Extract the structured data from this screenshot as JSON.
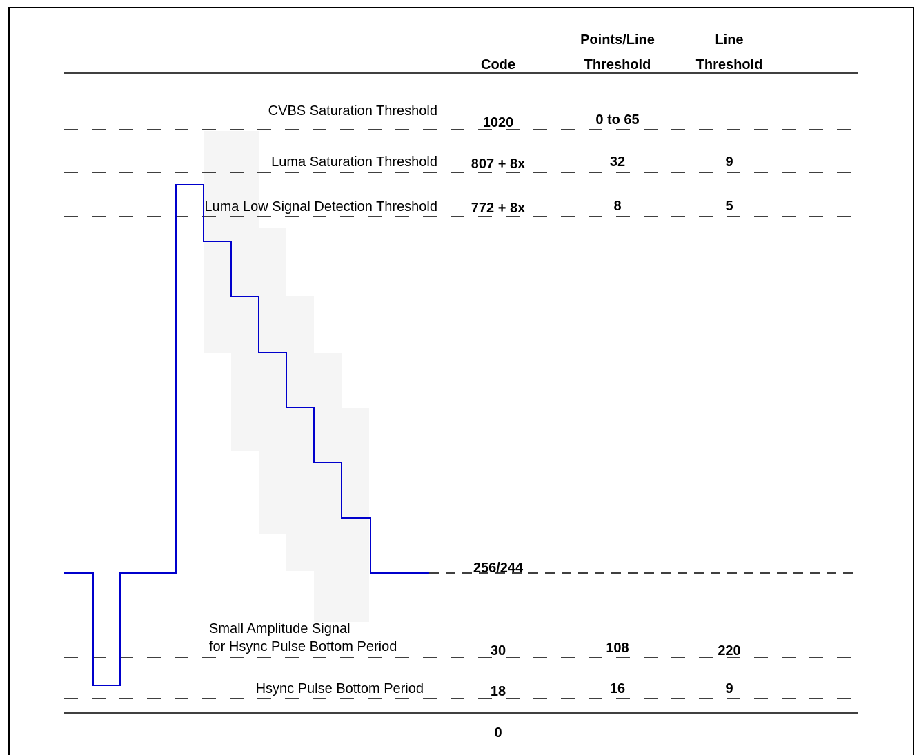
{
  "headers": {
    "code": "Code",
    "points_line_1": "Points/Line",
    "points_line_2": "Threshold",
    "line_1": "Line",
    "line_2": "Threshold"
  },
  "rows": [
    {
      "label": "CVBS Saturation Threshold",
      "code": "1020",
      "points": "0 to 65",
      "line": ""
    },
    {
      "label": "Luma Saturation Threshold",
      "code": "807 + 8x",
      "points": "32",
      "line": "9"
    },
    {
      "label": "Luma Low Signal Detection Threshold",
      "code": "772 + 8x",
      "points": "8",
      "line": "5"
    },
    {
      "label": "",
      "code": "256/244",
      "points": "",
      "line": ""
    },
    {
      "label_line1": "Small Amplitude Signal",
      "label_line2": "for Hsync Pulse Bottom Period",
      "code": "30",
      "points": "108",
      "line": "220"
    },
    {
      "label": "Hsync Pulse Bottom Period",
      "code": "18",
      "points": "16",
      "line": "9"
    }
  ],
  "zero_label": "0",
  "colors": {
    "waveform": "#0000cc",
    "shade": "#f5f5f5",
    "line": "#000000"
  }
}
